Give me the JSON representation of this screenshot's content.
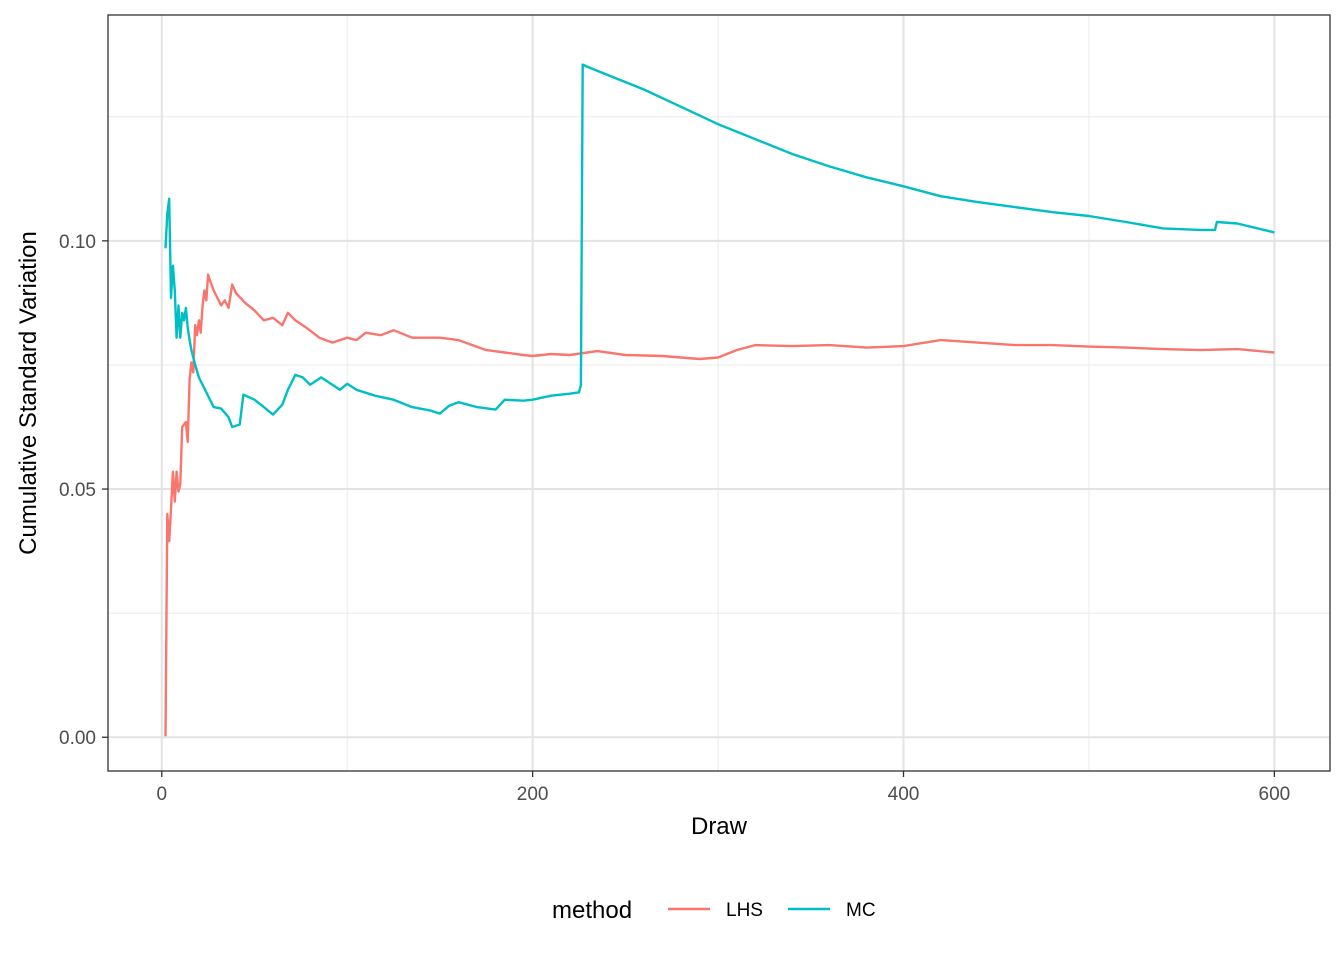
{
  "chart_data": {
    "type": "line",
    "title": "",
    "xlabel": "Draw",
    "ylabel": "Cumulative Standard Variation",
    "xlim": [
      -29,
      630
    ],
    "ylim": [
      -0.0068,
      0.1455
    ],
    "x_ticks": [
      0,
      200,
      400,
      600
    ],
    "x_tick_labels": [
      "0",
      "200",
      "400",
      "600"
    ],
    "y_ticks": [
      0,
      0.05,
      0.1
    ],
    "y_tick_labels": [
      "0.00",
      "0.05",
      "0.10"
    ],
    "grid": true,
    "legend": {
      "title": "method",
      "position": "bottom"
    },
    "series": [
      {
        "name": "LHS",
        "color": "#F8766D",
        "points": [
          [
            2,
            0.0002
          ],
          [
            3,
            0.045
          ],
          [
            4,
            0.0395
          ],
          [
            5,
            0.046
          ],
          [
            6,
            0.0535
          ],
          [
            7,
            0.0475
          ],
          [
            8,
            0.0535
          ],
          [
            9,
            0.0495
          ],
          [
            10,
            0.051
          ],
          [
            11,
            0.0625
          ],
          [
            12,
            0.063
          ],
          [
            13,
            0.0635
          ],
          [
            14,
            0.0595
          ],
          [
            15,
            0.072
          ],
          [
            16,
            0.0755
          ],
          [
            17,
            0.0735
          ],
          [
            18,
            0.083
          ],
          [
            19,
            0.081
          ],
          [
            20,
            0.084
          ],
          [
            21,
            0.0815
          ],
          [
            22,
            0.087
          ],
          [
            23,
            0.09
          ],
          [
            24,
            0.088
          ],
          [
            25,
            0.0932
          ],
          [
            26,
            0.092
          ],
          [
            28,
            0.09
          ],
          [
            30,
            0.0885
          ],
          [
            32,
            0.087
          ],
          [
            34,
            0.088
          ],
          [
            36,
            0.0865
          ],
          [
            38,
            0.0912
          ],
          [
            40,
            0.0895
          ],
          [
            45,
            0.0875
          ],
          [
            50,
            0.086
          ],
          [
            55,
            0.084
          ],
          [
            60,
            0.0845
          ],
          [
            65,
            0.083
          ],
          [
            68,
            0.0855
          ],
          [
            72,
            0.084
          ],
          [
            78,
            0.0825
          ],
          [
            85,
            0.0805
          ],
          [
            92,
            0.0795
          ],
          [
            100,
            0.0805
          ],
          [
            105,
            0.08
          ],
          [
            110,
            0.0815
          ],
          [
            118,
            0.081
          ],
          [
            125,
            0.082
          ],
          [
            135,
            0.0805
          ],
          [
            150,
            0.0805
          ],
          [
            160,
            0.08
          ],
          [
            175,
            0.078
          ],
          [
            185,
            0.0775
          ],
          [
            195,
            0.077
          ],
          [
            200,
            0.0768
          ],
          [
            210,
            0.0772
          ],
          [
            220,
            0.077
          ],
          [
            235,
            0.0778
          ],
          [
            250,
            0.077
          ],
          [
            270,
            0.0768
          ],
          [
            290,
            0.0762
          ],
          [
            300,
            0.0765
          ],
          [
            310,
            0.078
          ],
          [
            320,
            0.079
          ],
          [
            340,
            0.0788
          ],
          [
            360,
            0.079
          ],
          [
            380,
            0.0785
          ],
          [
            400,
            0.0788
          ],
          [
            420,
            0.08
          ],
          [
            440,
            0.0795
          ],
          [
            460,
            0.079
          ],
          [
            480,
            0.079
          ],
          [
            500,
            0.0787
          ],
          [
            520,
            0.0785
          ],
          [
            540,
            0.0782
          ],
          [
            560,
            0.078
          ],
          [
            580,
            0.0782
          ],
          [
            600,
            0.0775
          ]
        ]
      },
      {
        "name": "MC",
        "color": "#00BFC4",
        "points": [
          [
            2,
            0.0985
          ],
          [
            3,
            0.1055
          ],
          [
            4,
            0.1085
          ],
          [
            5,
            0.0885
          ],
          [
            6,
            0.095
          ],
          [
            7,
            0.09
          ],
          [
            8,
            0.0805
          ],
          [
            9,
            0.087
          ],
          [
            10,
            0.0805
          ],
          [
            11,
            0.0855
          ],
          [
            12,
            0.084
          ],
          [
            13,
            0.0865
          ],
          [
            14,
            0.0825
          ],
          [
            15,
            0.08
          ],
          [
            16,
            0.078
          ],
          [
            18,
            0.075
          ],
          [
            20,
            0.0725
          ],
          [
            24,
            0.0695
          ],
          [
            28,
            0.0665
          ],
          [
            32,
            0.0662
          ],
          [
            36,
            0.0645
          ],
          [
            38,
            0.0625
          ],
          [
            42,
            0.063
          ],
          [
            44,
            0.069
          ],
          [
            50,
            0.068
          ],
          [
            55,
            0.0665
          ],
          [
            60,
            0.065
          ],
          [
            65,
            0.067
          ],
          [
            68,
            0.07
          ],
          [
            72,
            0.073
          ],
          [
            76,
            0.0725
          ],
          [
            80,
            0.071
          ],
          [
            86,
            0.0725
          ],
          [
            92,
            0.071
          ],
          [
            96,
            0.07
          ],
          [
            100,
            0.0712
          ],
          [
            105,
            0.07
          ],
          [
            115,
            0.0688
          ],
          [
            125,
            0.068
          ],
          [
            135,
            0.0665
          ],
          [
            145,
            0.0658
          ],
          [
            150,
            0.0652
          ],
          [
            155,
            0.0668
          ],
          [
            160,
            0.0675
          ],
          [
            170,
            0.0665
          ],
          [
            180,
            0.066
          ],
          [
            185,
            0.068
          ],
          [
            195,
            0.0678
          ],
          [
            200,
            0.068
          ],
          [
            210,
            0.0688
          ],
          [
            220,
            0.0692
          ],
          [
            225,
            0.0695
          ],
          [
            226,
            0.071
          ],
          [
            227,
            0.1355
          ],
          [
            230,
            0.135
          ],
          [
            240,
            0.1335
          ],
          [
            260,
            0.1305
          ],
          [
            280,
            0.127
          ],
          [
            300,
            0.1235
          ],
          [
            320,
            0.1205
          ],
          [
            340,
            0.1175
          ],
          [
            360,
            0.115
          ],
          [
            380,
            0.1128
          ],
          [
            400,
            0.111
          ],
          [
            420,
            0.109
          ],
          [
            440,
            0.1078
          ],
          [
            460,
            0.1068
          ],
          [
            480,
            0.1058
          ],
          [
            500,
            0.105
          ],
          [
            520,
            0.1038
          ],
          [
            540,
            0.1025
          ],
          [
            560,
            0.1022
          ],
          [
            568,
            0.1022
          ],
          [
            569,
            0.1038
          ],
          [
            580,
            0.1035
          ],
          [
            600,
            0.1017
          ]
        ]
      }
    ]
  }
}
